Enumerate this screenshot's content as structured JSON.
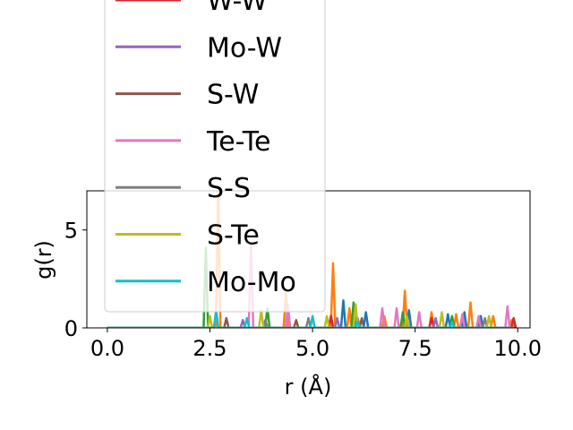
{
  "chart_data": {
    "type": "line",
    "title": "",
    "xlabel": "r (Å)",
    "ylabel": "g(r)",
    "xlim": [
      -0.5,
      10.3
    ],
    "ylim": [
      0,
      7
    ],
    "xticks": [
      0.0,
      2.5,
      5.0,
      7.5,
      10.0
    ],
    "xtick_labels": [
      "0.0",
      "2.5",
      "5.0",
      "7.5",
      "10.0"
    ],
    "yticks": [
      0,
      5
    ],
    "ytick_labels": [
      "0",
      "5"
    ],
    "grid": false,
    "legend_placement": "upper-left, extending above the axes",
    "series": [
      {
        "name": "",
        "color": "#1f77b4",
        "peaks": [
          [
            5.75,
            1.4
          ],
          [
            6.3,
            0.8
          ],
          [
            7.35,
            0.9
          ],
          [
            8.3,
            0.7
          ],
          [
            8.7,
            0.8
          ],
          [
            9.1,
            0.6
          ]
        ]
      },
      {
        "name": "",
        "color": "#ff7f0e",
        "peaks": [
          [
            2.7,
            7.0
          ],
          [
            4.35,
            1.8
          ],
          [
            5.5,
            3.3
          ],
          [
            5.9,
            1.0
          ],
          [
            6.75,
            0.6
          ],
          [
            7.25,
            1.9
          ],
          [
            7.9,
            0.8
          ],
          [
            8.5,
            0.7
          ],
          [
            8.85,
            1.3
          ],
          [
            9.4,
            0.6
          ],
          [
            9.85,
            0.4
          ]
        ]
      },
      {
        "name": "",
        "color": "#2ca02c",
        "peaks": [
          [
            2.4,
            4.1
          ],
          [
            3.9,
            1.0
          ],
          [
            6.0,
            1.3
          ],
          [
            7.2,
            0.8
          ],
          [
            8.4,
            0.6
          ]
        ]
      },
      {
        "name": "W-W",
        "color": "#d62728",
        "peaks": [
          [
            5.45,
            0.6
          ],
          [
            7.9,
            0.5
          ],
          [
            9.9,
            0.5
          ]
        ]
      },
      {
        "name": "Mo-W",
        "color": "#9467bd",
        "peaks": [
          [
            3.3,
            0.4
          ],
          [
            5.6,
            0.5
          ],
          [
            8.0,
            0.5
          ]
        ]
      },
      {
        "name": "S-W",
        "color": "#8c564b",
        "peaks": [
          [
            2.9,
            0.5
          ],
          [
            4.6,
            0.4
          ],
          [
            6.2,
            0.5
          ]
        ]
      },
      {
        "name": "Te-Te",
        "color": "#e377c2",
        "peaks": [
          [
            3.5,
            4.3
          ],
          [
            4.4,
            1.2
          ],
          [
            6.7,
            1.0
          ],
          [
            7.05,
            1.0
          ],
          [
            7.6,
            0.8
          ],
          [
            8.65,
            0.7
          ],
          [
            9.05,
            0.6
          ],
          [
            9.75,
            1.1
          ]
        ]
      },
      {
        "name": "S-S",
        "color": "#7f7f7f",
        "peaks": [
          [
            3.85,
            0.4
          ],
          [
            4.9,
            0.5
          ],
          [
            6.1,
            0.5
          ],
          [
            9.2,
            0.5
          ]
        ]
      },
      {
        "name": "S-Te",
        "color": "#bcbd22",
        "peaks": [
          [
            2.5,
            0.6
          ],
          [
            3.75,
            0.9
          ],
          [
            5.35,
            0.6
          ],
          [
            6.05,
            1.2
          ],
          [
            7.3,
            0.6
          ],
          [
            8.15,
            0.8
          ],
          [
            9.3,
            0.6
          ]
        ]
      },
      {
        "name": "Mo-Mo",
        "color": "#17becf",
        "peaks": [
          [
            2.65,
            0.9
          ],
          [
            3.4,
            0.5
          ],
          [
            5.0,
            0.6
          ],
          [
            6.1,
            0.3
          ],
          [
            8.4,
            0.3
          ]
        ]
      }
    ]
  }
}
